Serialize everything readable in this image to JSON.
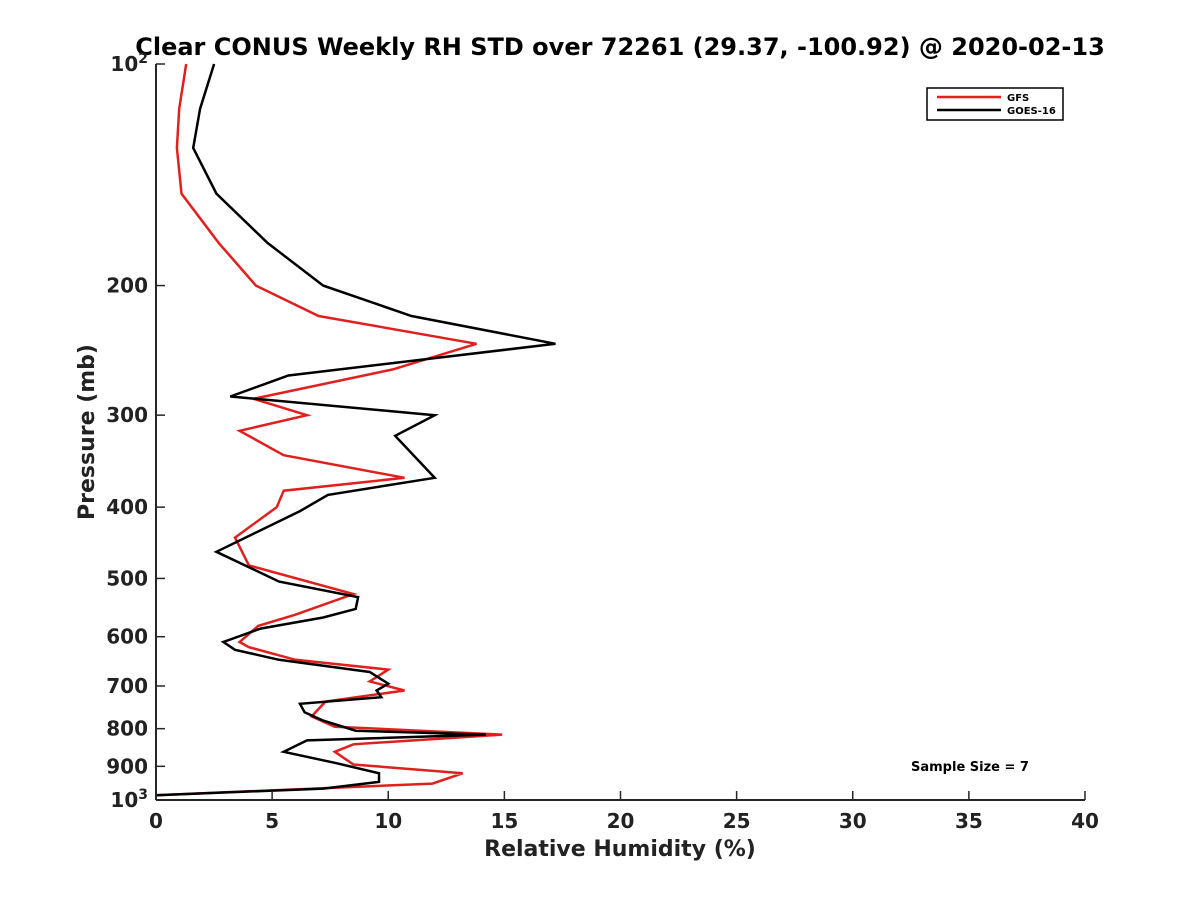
{
  "chart_data": {
    "type": "line",
    "title": "Clear CONUS Weekly RH STD over 72261 (29.37, -100.92) @ 2020-02-13",
    "xlabel": "Relative Humidity (%)",
    "ylabel": "Pressure (mb)",
    "xlim": [
      0,
      40
    ],
    "ylim": [
      1000,
      100
    ],
    "yscale": "log",
    "y_inverted": true,
    "grid": false,
    "legend_position": "top-right",
    "x_ticks": [
      "0",
      "5",
      "10",
      "15",
      "20",
      "25",
      "30",
      "35",
      "40"
    ],
    "y_ticks": [
      {
        "value": 100,
        "base": "10",
        "exp": "2"
      },
      {
        "value": 200,
        "label": "200"
      },
      {
        "value": 300,
        "label": "300"
      },
      {
        "value": 400,
        "label": "400"
      },
      {
        "value": 500,
        "label": "500"
      },
      {
        "value": 600,
        "label": "600"
      },
      {
        "value": 700,
        "label": "700"
      },
      {
        "value": 800,
        "label": "800"
      },
      {
        "value": 900,
        "label": "900"
      },
      {
        "value": 1000,
        "base": "10",
        "exp": "3"
      }
    ],
    "annotation": "Sample Size = 7",
    "series": [
      {
        "name": "GFS",
        "color": "#e0201f",
        "points": [
          [
            1.3,
            100
          ],
          [
            1.0,
            115
          ],
          [
            0.9,
            130
          ],
          [
            1.1,
            150
          ],
          [
            2.7,
            175
          ],
          [
            4.3,
            200
          ],
          [
            7.0,
            220
          ],
          [
            13.8,
            240
          ],
          [
            10.2,
            260
          ],
          [
            4.2,
            285
          ],
          [
            6.5,
            300
          ],
          [
            3.6,
            315
          ],
          [
            5.5,
            340
          ],
          [
            10.7,
            365
          ],
          [
            5.5,
            380
          ],
          [
            5.2,
            400
          ],
          [
            3.4,
            440
          ],
          [
            4.0,
            480
          ],
          [
            8.5,
            525
          ],
          [
            6.0,
            560
          ],
          [
            4.4,
            580
          ],
          [
            3.6,
            610
          ],
          [
            4.0,
            620
          ],
          [
            6.0,
            645
          ],
          [
            10.0,
            665
          ],
          [
            9.2,
            690
          ],
          [
            10.7,
            710
          ],
          [
            7.3,
            735
          ],
          [
            6.7,
            770
          ],
          [
            7.7,
            795
          ],
          [
            14.9,
            815
          ],
          [
            8.5,
            840
          ],
          [
            7.7,
            860
          ],
          [
            8.5,
            895
          ],
          [
            13.2,
            920
          ],
          [
            11.9,
            950
          ],
          [
            0,
            985
          ]
        ]
      },
      {
        "name": "GOES-16",
        "color": "#000000",
        "points": [
          [
            2.5,
            100
          ],
          [
            1.9,
            115
          ],
          [
            1.6,
            130
          ],
          [
            2.6,
            150
          ],
          [
            4.8,
            175
          ],
          [
            7.2,
            200
          ],
          [
            11.0,
            220
          ],
          [
            17.2,
            240
          ],
          [
            5.7,
            265
          ],
          [
            3.2,
            283
          ],
          [
            12.0,
            300
          ],
          [
            10.3,
            320
          ],
          [
            12.0,
            365
          ],
          [
            7.4,
            385
          ],
          [
            6.2,
            405
          ],
          [
            2.6,
            460
          ],
          [
            5.3,
            505
          ],
          [
            8.7,
            530
          ],
          [
            8.6,
            550
          ],
          [
            7.2,
            565
          ],
          [
            4.5,
            585
          ],
          [
            2.9,
            610
          ],
          [
            3.4,
            625
          ],
          [
            5.3,
            645
          ],
          [
            9.2,
            670
          ],
          [
            10.0,
            695
          ],
          [
            9.5,
            710
          ],
          [
            9.7,
            725
          ],
          [
            6.2,
            740
          ],
          [
            6.4,
            760
          ],
          [
            7.2,
            780
          ],
          [
            8.6,
            805
          ],
          [
            14.2,
            815
          ],
          [
            6.5,
            830
          ],
          [
            5.5,
            860
          ],
          [
            7.7,
            890
          ],
          [
            9.6,
            920
          ],
          [
            9.6,
            945
          ],
          [
            7.2,
            965
          ],
          [
            0,
            985
          ]
        ]
      }
    ]
  }
}
